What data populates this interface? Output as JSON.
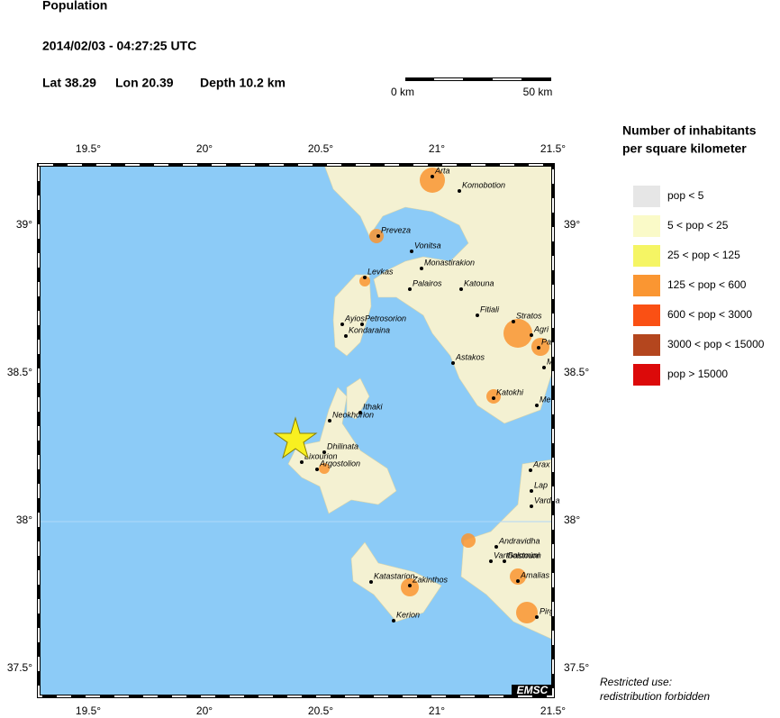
{
  "header": {
    "title": "Population",
    "datetime": "2014/02/03 - 04:27:25 UTC",
    "lat": "Lat 38.29",
    "lon": "Lon 20.39",
    "depth": "Depth 10.2 km"
  },
  "scale_bar": {
    "start": "0 km",
    "end": "50 km"
  },
  "map": {
    "lon_ticks": [
      "19.5°",
      "20°",
      "20.5°",
      "21°",
      "21.5°"
    ],
    "lat_ticks": [
      "39°",
      "38.5°",
      "38°",
      "37.5°"
    ],
    "places": [
      "Arta",
      "Komobotion",
      "Preveza",
      "Vonitsa",
      "Monastirakion",
      "Levkas",
      "Palairos",
      "Katouna",
      "Fitiali",
      "Stratos",
      "Agri",
      "Pa",
      "M",
      "Ayios",
      "Petrosorion",
      "Kondaraina",
      "Astakos",
      "Katokhi",
      "Me",
      "Ithaki",
      "Neokhorion",
      "Dhilinata",
      "Lixourion",
      "Argostolion",
      "Arax",
      "Lap",
      "Vardha",
      "Andravidha",
      "Vartholomion",
      "Gastouni",
      "Amalias",
      "Katastarion",
      "Zakinthos",
      "Kerion",
      "Pirg"
    ],
    "logo": "EMSC"
  },
  "legend": {
    "title_lines": [
      "Number of inhabitants",
      "per square kilometer"
    ],
    "items": [
      {
        "label": "pop < 5",
        "color": "#e6e6e6"
      },
      {
        "label": "5 < pop < 25",
        "color": "#fafac8"
      },
      {
        "label": "25 < pop < 125",
        "color": "#f5f564"
      },
      {
        "label": "125 < pop < 600",
        "color": "#fa9632"
      },
      {
        "label": "600 < pop < 3000",
        "color": "#fa5014"
      },
      {
        "label": "3000 < pop < 15000",
        "color": "#b4461e"
      },
      {
        "label": "pop > 15000",
        "color": "#dc0a0a"
      }
    ]
  },
  "footer": {
    "lines": [
      "Restricted use:",
      "redistribution forbidden"
    ]
  }
}
